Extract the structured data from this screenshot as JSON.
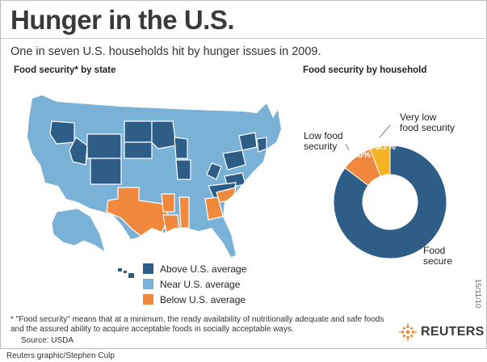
{
  "title": "Hunger in the U.S.",
  "subtitle": "One in seven U.S. households hit by hunger issues in 2009.",
  "map_section_title": "Food security* by state",
  "donut_section_title": "Food security by household",
  "legend": [
    {
      "label": "Above U.S. average",
      "color": "#2e5d87"
    },
    {
      "label": "Near U.S. average",
      "color": "#7ab1d6"
    },
    {
      "label": "Below U.S. average",
      "color": "#f0883d"
    }
  ],
  "date_stamp": "15/11/10",
  "footnote": "* \"Food security\" means that at a minimum, the ready availability of nutritionally adequate and safe foods and the assured ability to acquire acceptable foods in socially acceptable ways.",
  "source": "Source: USDA",
  "brand": "REUTERS",
  "credit": "Reuters graphic/Stephen Culp",
  "chart_data": {
    "type": "pie",
    "title": "Food security by household",
    "slices": [
      {
        "label": "Food secure",
        "value": 85.3,
        "value_label": "85.3%",
        "color": "#2e5d87"
      },
      {
        "label": "Low food security",
        "value": 9.0,
        "value_label": "9.0%",
        "color": "#f0883d"
      },
      {
        "label": "Very low food security",
        "value": 5.7,
        "value_label": "5.7%",
        "color": "#f5b323"
      }
    ],
    "outer_labels": {
      "food_secure": [
        "Food",
        "secure"
      ],
      "low": [
        "Low food",
        "security"
      ],
      "very_low": [
        "Very low",
        "food security"
      ]
    }
  }
}
